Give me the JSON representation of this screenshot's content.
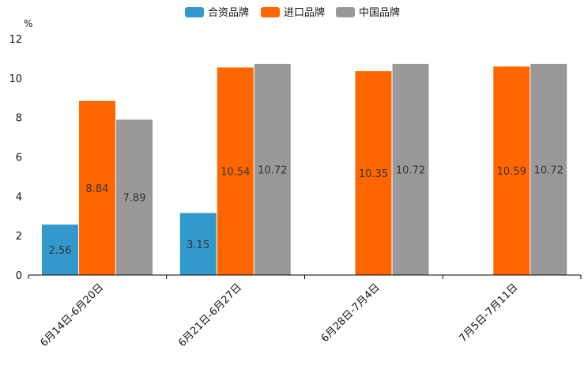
{
  "chart_data": {
    "type": "bar",
    "title": "",
    "xlabel": "",
    "ylabel": "%",
    "ylim": [
      0,
      12
    ],
    "yticks": [
      0,
      2,
      4,
      6,
      8,
      10,
      12
    ],
    "grid": false,
    "legend_position": "top-center",
    "categories": [
      "6月14日-6月20日",
      "6月21日-6月27日",
      "6月28日-7月4日",
      "7月5日-7月11日"
    ],
    "series": [
      {
        "name": "合资品牌",
        "color": "#3399cc",
        "values": [
          2.56,
          3.15,
          null,
          null
        ]
      },
      {
        "name": "进口品牌",
        "color": "#ff6600",
        "values": [
          8.84,
          10.54,
          10.35,
          10.59
        ]
      },
      {
        "name": "中国品牌",
        "color": "#999999",
        "values": [
          7.89,
          10.72,
          10.72,
          10.72
        ]
      }
    ]
  }
}
